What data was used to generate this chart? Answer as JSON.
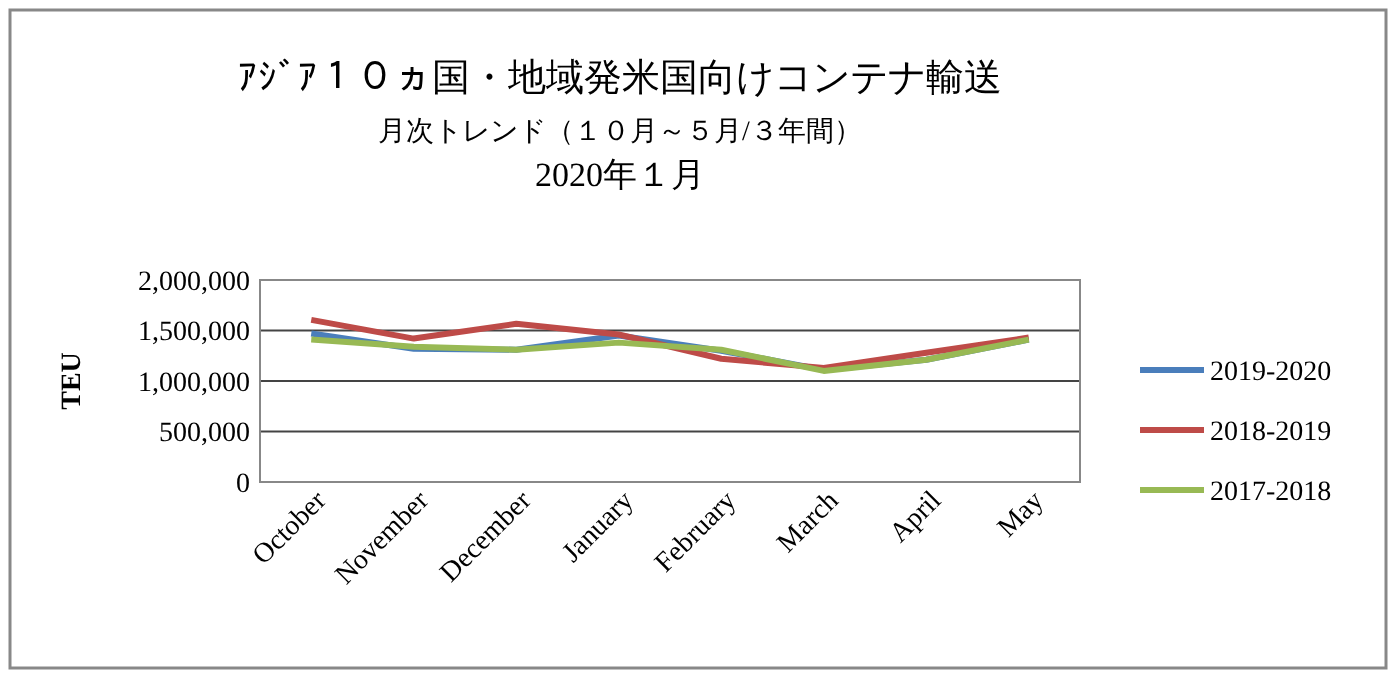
{
  "chart_data": {
    "type": "line",
    "title": "ｱｼﾞｱ１０ヵ国・地域発米国向けコンテナ輸送",
    "subtitle": "月次トレンド（１０月～５月/３年間）\n2020年１月",
    "ylabel": "TEU",
    "categories": [
      "October",
      "November",
      "December",
      "January",
      "February",
      "March",
      "April",
      "May"
    ],
    "series": [
      {
        "name": "2019-2020",
        "color": "#4a7ebb",
        "values": [
          1470000,
          1320000,
          1310000,
          1450000,
          1300000,
          1110000,
          1210000,
          1410000
        ]
      },
      {
        "name": "2018-2019",
        "color": "#be4b48",
        "values": [
          1605000,
          1420000,
          1566000,
          1460000,
          1220000,
          1130000,
          1280000,
          1430000
        ]
      },
      {
        "name": "2017-2018",
        "color": "#98b954",
        "values": [
          1410000,
          1340000,
          1310000,
          1380000,
          1310000,
          1100000,
          1210000,
          1410000
        ]
      }
    ],
    "ylim": [
      0,
      2000000
    ],
    "yticks": [
      {
        "value": 0,
        "label": "0"
      },
      {
        "value": 500000,
        "label": "500,000"
      },
      {
        "value": 1000000,
        "label": "1,000,000"
      },
      {
        "value": 1500000,
        "label": "1,500,000"
      },
      {
        "value": 2000000,
        "label": "2,000,000"
      }
    ],
    "grid": "y",
    "legend": "right",
    "marker": "none",
    "line_style": "solid"
  }
}
